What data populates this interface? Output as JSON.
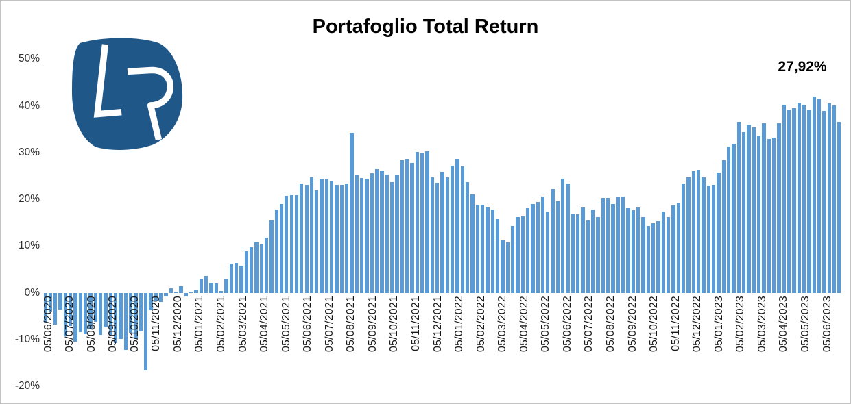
{
  "window": {
    "background": "#ffffff",
    "border_color": "#c3c3c3"
  },
  "logo": {
    "letters": "LR",
    "shape_color": "#1f5789",
    "letter_color": "#ffffff"
  },
  "chart_data": {
    "type": "bar",
    "title": "Portafoglio Total Return",
    "annotation": "27,92%",
    "bar_color": "#5B9BD5",
    "grid": false,
    "legend_position": "none",
    "ylim": [
      -20,
      50
    ],
    "y_ticks": [
      "50%",
      "40%",
      "30%",
      "20%",
      "10%",
      "0%",
      "-10%",
      "-20%"
    ],
    "y_tick_values": [
      50,
      40,
      30,
      20,
      10,
      0,
      -10,
      -20
    ],
    "x_tick_labels": [
      "05/06/2020",
      "05/07/2020",
      "05/08/2020",
      "05/09/2020",
      "05/10/2020",
      "05/11/2020",
      "05/12/2020",
      "05/01/2021",
      "05/02/2021",
      "05/03/2021",
      "05/04/2021",
      "05/05/2021",
      "05/06/2021",
      "05/07/2021",
      "05/08/2021",
      "05/09/2021",
      "05/10/2021",
      "05/11/2021",
      "05/12/2021",
      "05/01/2022",
      "05/02/2022",
      "05/03/2022",
      "05/04/2022",
      "05/05/2022",
      "05/06/2022",
      "05/07/2022",
      "05/08/2022",
      "05/09/2022",
      "05/10/2022",
      "05/11/2022",
      "05/12/2022",
      "05/01/2023",
      "05/02/2023",
      "05/03/2023",
      "05/04/2023",
      "05/05/2023",
      "05/06/2023"
    ],
    "values": [
      -6.3,
      -3.9,
      -6.7,
      -3.5,
      -9.3,
      -7.0,
      -10.4,
      -8.3,
      -8.8,
      -7.8,
      -6.1,
      -9.0,
      -7.3,
      -8.9,
      -10.7,
      -9.8,
      -12.2,
      -8.5,
      -9.8,
      -8.1,
      -16.5,
      -3.6,
      -1.8,
      -1.9,
      -0.8,
      1.0,
      0.3,
      1.4,
      -0.7,
      0.2,
      0.6,
      3.0,
      3.7,
      2.2,
      2.0,
      0.4,
      2.9,
      6.3,
      6.4,
      5.8,
      8.9,
      9.8,
      10.8,
      10.5,
      11.9,
      15.5,
      17.9,
      19.0,
      20.8,
      20.9,
      20.9,
      23.5,
      23.1,
      24.7,
      22.0,
      24.4,
      24.4,
      24.1,
      23.2,
      23.2,
      23.5,
      34.3,
      25.2,
      24.6,
      24.4,
      25.7,
      26.5,
      26.3,
      25.4,
      23.8,
      25.2,
      28.4,
      28.7,
      27.9,
      30.2,
      29.9,
      30.3,
      24.8,
      23.6,
      26.0,
      24.7,
      27.3,
      28.7,
      27.1,
      23.8,
      21.1,
      18.9,
      18.9,
      18.3,
      17.9,
      15.8,
      11.3,
      10.9,
      14.3,
      16.2,
      16.4,
      18.1,
      19.1,
      19.5,
      20.6,
      17.4,
      22.3,
      19.7,
      24.5,
      23.4,
      17.0,
      16.9,
      18.3,
      15.5,
      17.9,
      16.3,
      20.4,
      20.3,
      19.0,
      20.5,
      20.6,
      18.2,
      17.7,
      18.3,
      16.2,
      14.3,
      15.0,
      15.4,
      17.4,
      16.3,
      18.7,
      19.3,
      23.4,
      24.7,
      26.1,
      26.4,
      24.8,
      23.0,
      23.2,
      25.8,
      28.4,
      31.4,
      31.9,
      36.6,
      34.4,
      36.0,
      35.5,
      33.7,
      36.4,
      33.0,
      33.2,
      36.4,
      40.3,
      39.2,
      39.5,
      40.7,
      40.3,
      39.3,
      42.0,
      41.6,
      39.0,
      40.6,
      40.1,
      36.7
    ]
  }
}
